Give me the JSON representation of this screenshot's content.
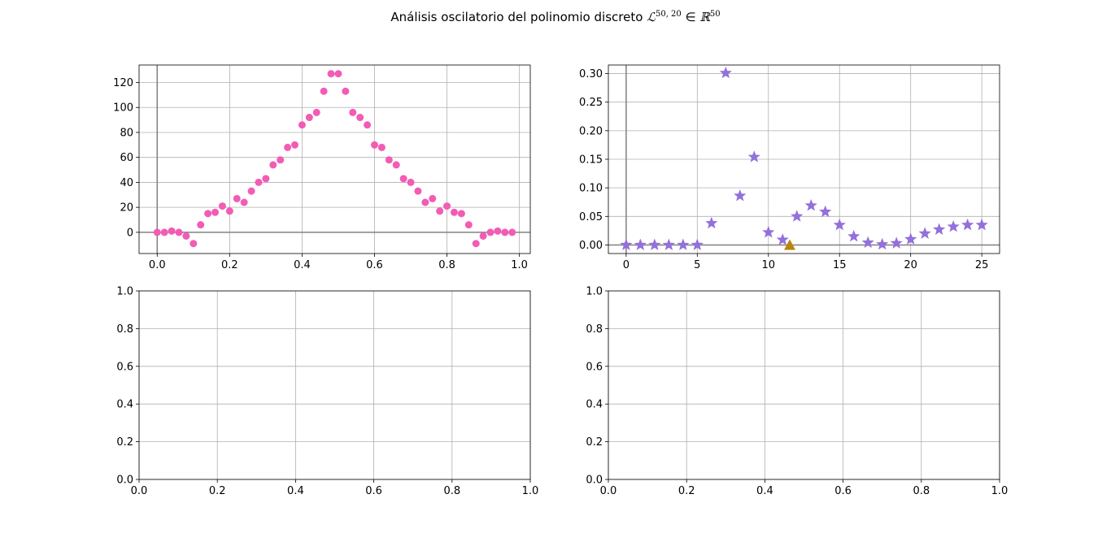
{
  "figure": {
    "title_prefix": "Análisis oscilatorio del polinomio discreto ",
    "title_L": "ℒ",
    "title_L_sup": "50, 20",
    "title_mid": " ∈ ",
    "title_R": "ℝ",
    "title_R_sup": "50"
  },
  "chart_data": [
    {
      "type": "scatter",
      "panel": "top-left",
      "title": "",
      "xlabel": "",
      "ylabel": "",
      "xlim": [
        -0.05,
        1.03
      ],
      "ylim": [
        -17,
        134
      ],
      "xticks": [
        0.0,
        0.2,
        0.4,
        0.6,
        0.8,
        1.0
      ],
      "xtick_labels": [
        "0.0",
        "0.2",
        "0.4",
        "0.6",
        "0.8",
        "1.0"
      ],
      "yticks": [
        0,
        20,
        40,
        60,
        80,
        100,
        120
      ],
      "ytick_labels": [
        "0",
        "20",
        "40",
        "60",
        "80",
        "100",
        "120"
      ],
      "grid": true,
      "axhline": 0,
      "axvline": 0,
      "marker": "circle",
      "color": "#f25cb5",
      "x": [
        0.0,
        0.02,
        0.04,
        0.06,
        0.08,
        0.1,
        0.12,
        0.14,
        0.16,
        0.18,
        0.2,
        0.22,
        0.24,
        0.26,
        0.28,
        0.3,
        0.32,
        0.34,
        0.36,
        0.38,
        0.4,
        0.42,
        0.44,
        0.46,
        0.48,
        0.5,
        0.52,
        0.54,
        0.56,
        0.58,
        0.6,
        0.62,
        0.64,
        0.66,
        0.68,
        0.7,
        0.72,
        0.74,
        0.76,
        0.78,
        0.8,
        0.82,
        0.84,
        0.86,
        0.88,
        0.9,
        0.92,
        0.94,
        0.96,
        0.98
      ],
      "y": [
        0,
        0,
        1,
        0,
        -3,
        -9,
        6,
        15,
        16,
        21,
        17,
        27,
        24,
        33,
        40,
        43,
        54,
        58,
        68,
        70,
        86,
        92,
        96,
        113,
        127,
        127,
        113,
        96,
        92,
        86,
        70,
        68,
        58,
        54,
        43,
        40,
        33,
        24,
        27,
        17,
        21,
        16,
        15,
        6,
        -9,
        -3,
        0,
        1,
        0,
        0
      ]
    },
    {
      "type": "scatter",
      "panel": "top-right",
      "title": "",
      "xlabel": "",
      "ylabel": "",
      "xlim": [
        -1.25,
        26.25
      ],
      "ylim": [
        -0.015,
        0.315
      ],
      "xticks": [
        0,
        5,
        10,
        15,
        20,
        25
      ],
      "xtick_labels": [
        "0",
        "5",
        "10",
        "15",
        "20",
        "25"
      ],
      "yticks": [
        0.0,
        0.05,
        0.1,
        0.15,
        0.2,
        0.25,
        0.3
      ],
      "ytick_labels": [
        "0.00",
        "0.05",
        "0.10",
        "0.15",
        "0.20",
        "0.25",
        "0.30"
      ],
      "grid": true,
      "axhline": 0,
      "axvline": 0,
      "series": [
        {
          "marker": "star",
          "color": "#9370db",
          "x": [
            0,
            1,
            2,
            3,
            4,
            5,
            6,
            7,
            8,
            9,
            10,
            11,
            12,
            13,
            14,
            15,
            16,
            17,
            18,
            19,
            20,
            21,
            22,
            23,
            24,
            25
          ],
          "y": [
            0.0,
            0.0,
            0.0,
            0.0,
            0.0,
            0.0,
            0.038,
            0.301,
            0.086,
            0.154,
            0.022,
            0.009,
            0.05,
            0.069,
            0.058,
            0.035,
            0.015,
            0.004,
            0.001,
            0.003,
            0.01,
            0.02,
            0.027,
            0.032,
            0.035,
            0.035
          ]
        },
        {
          "marker": "triangle",
          "color": "#b8860b",
          "x": [
            11.5
          ],
          "y": [
            0.0
          ]
        }
      ]
    },
    {
      "type": "scatter",
      "panel": "bottom-left",
      "title": "",
      "xlabel": "",
      "ylabel": "",
      "xlim": [
        0,
        1
      ],
      "ylim": [
        0,
        1
      ],
      "xticks": [
        0.0,
        0.2,
        0.4,
        0.6,
        0.8,
        1.0
      ],
      "xtick_labels": [
        "0.0",
        "0.2",
        "0.4",
        "0.6",
        "0.8",
        "1.0"
      ],
      "yticks": [
        0.0,
        0.2,
        0.4,
        0.6,
        0.8,
        1.0
      ],
      "ytick_labels": [
        "0.0",
        "0.2",
        "0.4",
        "0.6",
        "0.8",
        "1.0"
      ],
      "grid": true,
      "series": []
    },
    {
      "type": "scatter",
      "panel": "bottom-right",
      "title": "",
      "xlabel": "",
      "ylabel": "",
      "xlim": [
        0,
        1
      ],
      "ylim": [
        0,
        1
      ],
      "xticks": [
        0.0,
        0.2,
        0.4,
        0.6,
        0.8,
        1.0
      ],
      "xtick_labels": [
        "0.0",
        "0.2",
        "0.4",
        "0.6",
        "0.8",
        "1.0"
      ],
      "yticks": [
        0.0,
        0.2,
        0.4,
        0.6,
        0.8,
        1.0
      ],
      "ytick_labels": [
        "0.0",
        "0.2",
        "0.4",
        "0.6",
        "0.8",
        "1.0"
      ],
      "grid": true,
      "series": []
    }
  ]
}
